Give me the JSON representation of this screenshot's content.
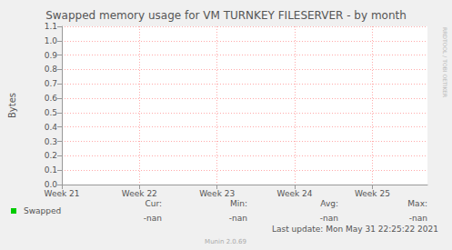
{
  "chart_data": {
    "type": "line",
    "title": "Swapped memory usage for VM TURNKEY FILESERVER - by month",
    "ylabel": "Bytes",
    "x": [
      21,
      22,
      23,
      24,
      25
    ],
    "xlim": [
      21,
      25.71
    ],
    "xticks": [
      {
        "value": 21,
        "label": "Week 21"
      },
      {
        "value": 22,
        "label": "Week 22"
      },
      {
        "value": 23,
        "label": "Week 23"
      },
      {
        "value": 24,
        "label": "Week 24"
      },
      {
        "value": 25,
        "label": "Week 25"
      }
    ],
    "ylim": [
      0,
      1.1
    ],
    "yticks": [
      {
        "value": 0,
        "label": "0.0"
      },
      0.1,
      0.2,
      0.3,
      0.4,
      0.5,
      0.6,
      0.7,
      0.8,
      0.9,
      {
        "value": 1,
        "label": "1.0"
      },
      1.1
    ],
    "grid": true,
    "series": [
      {
        "name": "Swapped",
        "color": "#00cc00",
        "values": [
          null,
          null,
          null,
          null,
          null
        ],
        "stats": [
          {
            "label": "Cur:",
            "value": "-nan"
          },
          {
            "label": "Min:",
            "value": "-nan"
          },
          {
            "label": "Avg:",
            "value": "-nan"
          },
          {
            "label": "Max:",
            "value": "-nan"
          }
        ]
      }
    ],
    "footer": "Last update: Mon May 31 22:25:22 2021",
    "credit": "Munin 2.0.69",
    "watermark": "RRDTOOL / TOBI OETIKER"
  }
}
